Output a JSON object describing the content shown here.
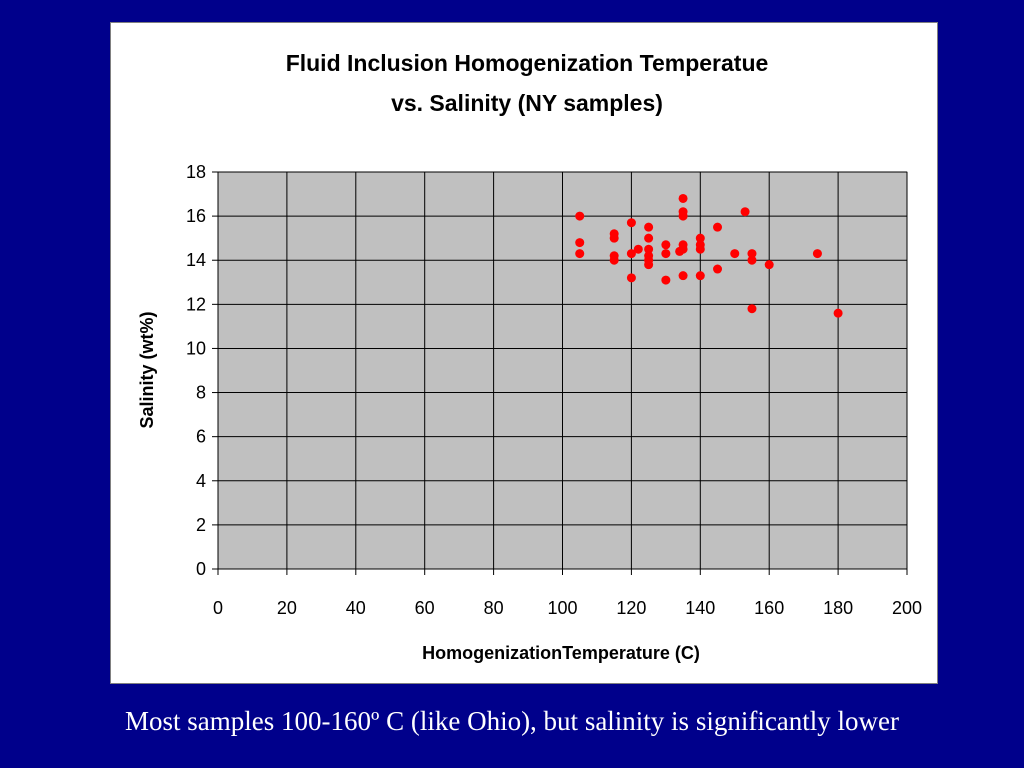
{
  "slide": {
    "caption": "Most samples 100-160º C (like Ohio), but salinity is significantly lower"
  },
  "colors": {
    "background": "#00008B",
    "plot_area": "#C0C0C0",
    "marker": "#FF0000",
    "gridline": "#000000"
  },
  "chart_data": {
    "type": "scatter",
    "title_lines": [
      "Fluid Inclusion Homogenization Temperatue",
      "vs. Salinity (NY samples)"
    ],
    "xlabel": "HomogenizationTemperature (C)",
    "ylabel": "Salinity (wt%)",
    "xlim": [
      0,
      200
    ],
    "ylim": [
      0,
      18
    ],
    "x_ticks": [
      "0",
      "20",
      "40",
      "60",
      "80",
      "100",
      "120",
      "140",
      "160",
      "180",
      "200"
    ],
    "y_ticks": [
      "0",
      "2",
      "4",
      "6",
      "8",
      "10",
      "12",
      "14",
      "16",
      "18"
    ],
    "grid": true,
    "legend": "none",
    "points": [
      {
        "x": 105,
        "y": 16.0
      },
      {
        "x": 105,
        "y": 14.8
      },
      {
        "x": 105,
        "y": 14.3
      },
      {
        "x": 115,
        "y": 15.2
      },
      {
        "x": 115,
        "y": 15.0
      },
      {
        "x": 115,
        "y": 14.2
      },
      {
        "x": 115,
        "y": 14.0
      },
      {
        "x": 120,
        "y": 15.7
      },
      {
        "x": 120,
        "y": 14.3
      },
      {
        "x": 120,
        "y": 13.2
      },
      {
        "x": 122,
        "y": 14.5
      },
      {
        "x": 125,
        "y": 15.5
      },
      {
        "x": 125,
        "y": 15.0
      },
      {
        "x": 125,
        "y": 14.5
      },
      {
        "x": 125,
        "y": 14.2
      },
      {
        "x": 125,
        "y": 14.0
      },
      {
        "x": 125,
        "y": 13.8
      },
      {
        "x": 130,
        "y": 14.7
      },
      {
        "x": 130,
        "y": 14.3
      },
      {
        "x": 130,
        "y": 13.1
      },
      {
        "x": 134,
        "y": 14.4
      },
      {
        "x": 135,
        "y": 16.8
      },
      {
        "x": 135,
        "y": 16.2
      },
      {
        "x": 135,
        "y": 16.0
      },
      {
        "x": 135,
        "y": 14.7
      },
      {
        "x": 135,
        "y": 14.5
      },
      {
        "x": 135,
        "y": 13.3
      },
      {
        "x": 140,
        "y": 15.0
      },
      {
        "x": 140,
        "y": 14.7
      },
      {
        "x": 140,
        "y": 14.5
      },
      {
        "x": 140,
        "y": 13.3
      },
      {
        "x": 145,
        "y": 15.5
      },
      {
        "x": 145,
        "y": 13.6
      },
      {
        "x": 150,
        "y": 14.3
      },
      {
        "x": 153,
        "y": 16.2
      },
      {
        "x": 155,
        "y": 14.3
      },
      {
        "x": 155,
        "y": 14.0
      },
      {
        "x": 155,
        "y": 11.8
      },
      {
        "x": 160,
        "y": 13.8
      },
      {
        "x": 174,
        "y": 14.3
      },
      {
        "x": 180,
        "y": 11.6
      }
    ]
  }
}
